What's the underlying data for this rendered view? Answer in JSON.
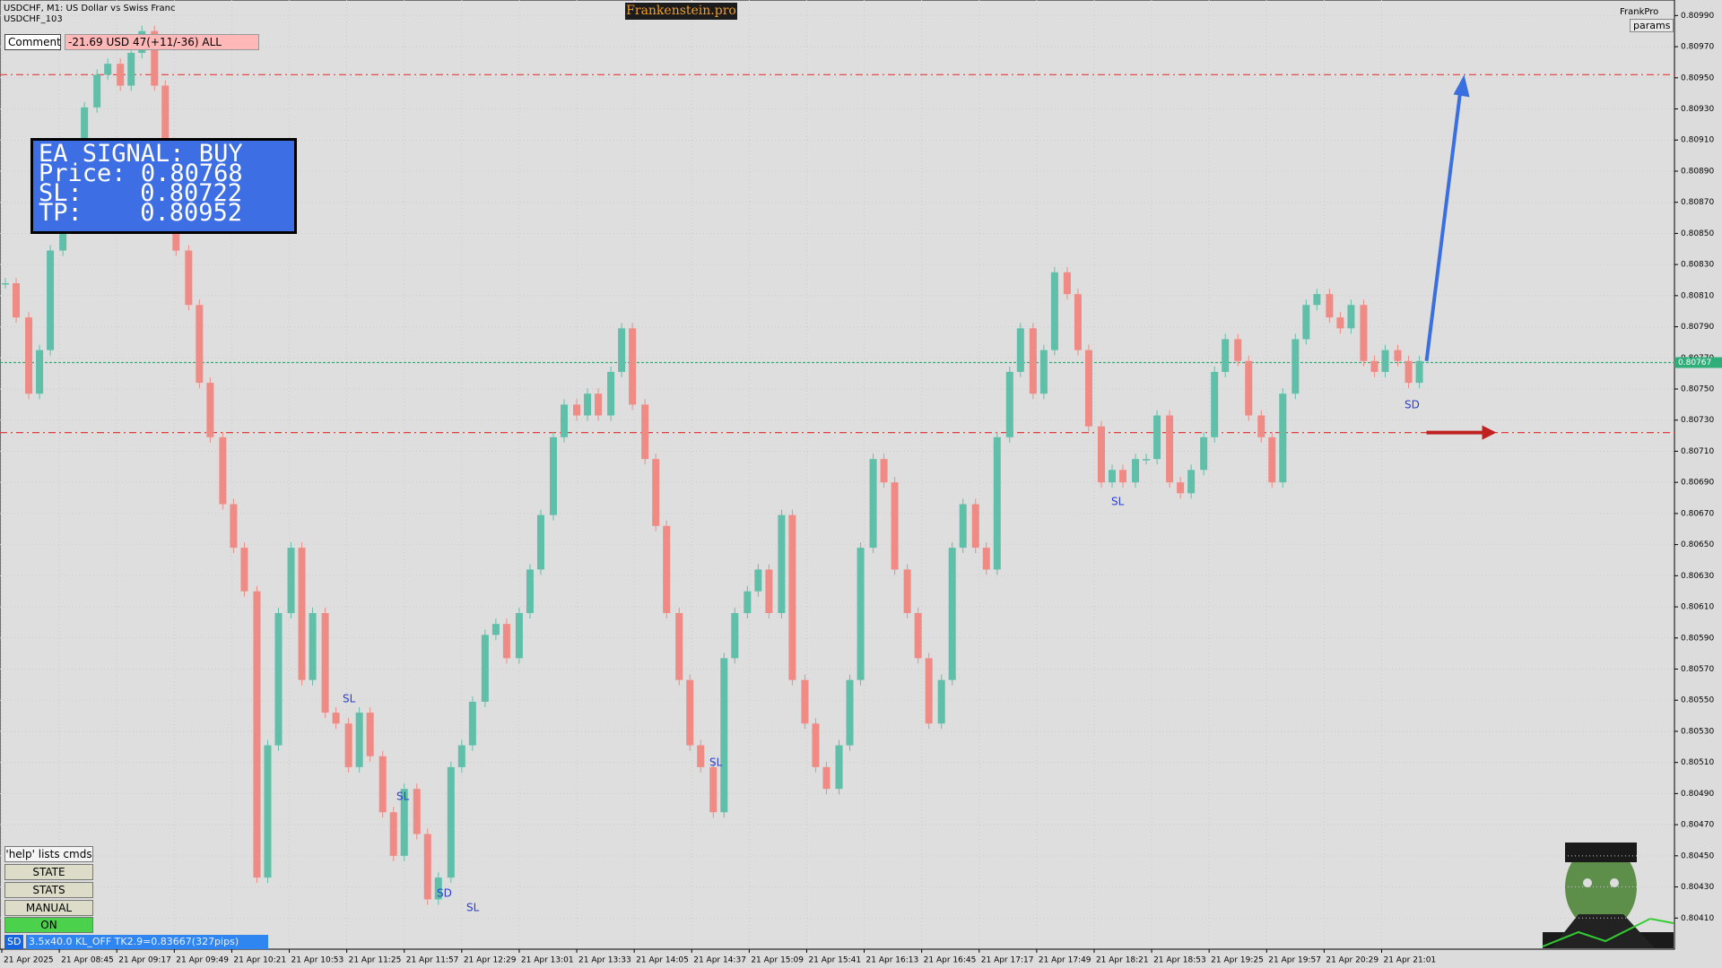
{
  "chart_data": {
    "type": "line",
    "title": "USDCHF, M1:  US Dollar vs Swiss Franc",
    "subtitle": "USDCHF_103",
    "x": [
      2,
      8,
      15,
      21,
      27,
      34,
      40,
      46,
      53,
      59,
      66,
      72,
      78,
      85,
      91,
      97,
      104,
      110,
      116,
      123,
      129,
      135,
      142,
      148,
      154,
      161,
      167,
      173,
      180,
      186,
      193,
      199,
      205,
      212,
      218,
      224,
      231,
      237,
      243,
      250,
      256,
      262,
      269,
      275,
      281,
      288,
      294,
      300,
      307,
      313,
      320,
      326,
      332,
      339,
      345,
      351,
      358,
      364,
      370,
      377,
      383,
      389,
      396,
      402,
      408,
      415,
      421,
      427,
      434,
      440,
      447,
      453,
      459,
      466,
      472,
      478,
      485,
      491,
      497,
      504,
      510,
      516,
      523,
      529,
      535,
      542,
      548,
      554,
      561,
      567,
      574,
      580,
      586,
      593,
      599,
      605,
      612,
      618,
      624,
      631,
      637,
      643,
      650,
      656,
      662,
      669,
      675,
      681,
      688,
      694,
      701,
      707,
      713,
      720,
      726,
      732,
      739,
      745,
      751,
      758,
      764,
      770,
      777,
      783,
      789
    ],
    "values": [
      0.80818,
      0.80796,
      0.80747,
      0.80775,
      0.80839,
      0.80853,
      0.80867,
      0.80931,
      0.80952,
      0.80959,
      0.80945,
      0.80966,
      0.8098,
      0.80945,
      0.8086,
      0.80839,
      0.80804,
      0.80754,
      0.80719,
      0.80676,
      0.80648,
      0.8062,
      0.80436,
      0.80521,
      0.80606,
      0.80648,
      0.80563,
      0.80606,
      0.80542,
      0.80535,
      0.80507,
      0.80542,
      0.80514,
      0.80478,
      0.8045,
      0.80493,
      0.80464,
      0.80422,
      0.80436,
      0.80507,
      0.80521,
      0.80549,
      0.80592,
      0.80599,
      0.80577,
      0.80606,
      0.80634,
      0.80669,
      0.80719,
      0.8074,
      0.80733,
      0.80747,
      0.80733,
      0.80761,
      0.80789,
      0.8074,
      0.80705,
      0.80662,
      0.80606,
      0.80563,
      0.80521,
      0.80507,
      0.80478,
      0.80577,
      0.80606,
      0.8062,
      0.80634,
      0.80606,
      0.80669,
      0.80563,
      0.80535,
      0.80507,
      0.80493,
      0.80521,
      0.80563,
      0.80648,
      0.80705,
      0.8069,
      0.80634,
      0.80606,
      0.80577,
      0.80535,
      0.80563,
      0.80648,
      0.80676,
      0.80648,
      0.80634,
      0.80719,
      0.80761,
      0.80789,
      0.80747,
      0.80775,
      0.80825,
      0.80811,
      0.80775,
      0.80726,
      0.8069,
      0.80698,
      0.8069,
      0.80705,
      0.80705,
      0.80733,
      0.8069,
      0.80683,
      0.80698,
      0.80719,
      0.80761,
      0.80782,
      0.80768,
      0.80733,
      0.80719,
      0.8069,
      0.80747,
      0.80782,
      0.80804,
      0.80811,
      0.80796,
      0.80789,
      0.80804,
      0.80768,
      0.80761,
      0.80775,
      0.80768,
      0.80754,
      0.80768
    ],
    "colors": {
      "up": "#5fbfa9",
      "down": "#f08a84"
    },
    "xlim": [
      -1,
      931
    ],
    "xticks": [
      {
        "value": 0,
        "label": "21 Apr 2025"
      },
      {
        "value": 32,
        "label": "21 Apr 08:45"
      },
      {
        "value": 64,
        "label": "21 Apr 09:17"
      },
      {
        "value": 96,
        "label": "21 Apr 09:49"
      },
      {
        "value": 128,
        "label": "21 Apr 10:21"
      },
      {
        "value": 160,
        "label": "21 Apr 10:53"
      },
      {
        "value": 192,
        "label": "21 Apr 11:25"
      },
      {
        "value": 224,
        "label": "21 Apr 11:57"
      },
      {
        "value": 256,
        "label": "21 Apr 12:29"
      },
      {
        "value": 288,
        "label": "21 Apr 13:01"
      },
      {
        "value": 320,
        "label": "21 Apr 13:33"
      },
      {
        "value": 352,
        "label": "21 Apr 14:05"
      },
      {
        "value": 384,
        "label": "21 Apr 14:37"
      },
      {
        "value": 416,
        "label": "21 Apr 15:09"
      },
      {
        "value": 448,
        "label": "21 Apr 15:41"
      },
      {
        "value": 480,
        "label": "21 Apr 16:13"
      },
      {
        "value": 512,
        "label": "21 Apr 16:45"
      },
      {
        "value": 544,
        "label": "21 Apr 17:17"
      },
      {
        "value": 576,
        "label": "21 Apr 17:49"
      },
      {
        "value": 608,
        "label": "21 Apr 18:21"
      },
      {
        "value": 640,
        "label": "21 Apr 18:53"
      },
      {
        "value": 672,
        "label": "21 Apr 19:25"
      },
      {
        "value": 704,
        "label": "21 Apr 19:57"
      },
      {
        "value": 736,
        "label": "21 Apr 20:29"
      },
      {
        "value": 768,
        "label": "21 Apr 21:01"
      }
    ],
    "ylim": [
      0.8039,
      0.81
    ],
    "yticks": [
      {
        "value": 0.8041,
        "label": "0.80410"
      },
      {
        "value": 0.8043,
        "label": "0.80430"
      },
      {
        "value": 0.8045,
        "label": "0.80450"
      },
      {
        "value": 0.8047,
        "label": "0.80470"
      },
      {
        "value": 0.8049,
        "label": "0.80490"
      },
      {
        "value": 0.8051,
        "label": "0.80510"
      },
      {
        "value": 0.8053,
        "label": "0.80530"
      },
      {
        "value": 0.8055,
        "label": "0.80550"
      },
      {
        "value": 0.8057,
        "label": "0.80570"
      },
      {
        "value": 0.8059,
        "label": "0.80590"
      },
      {
        "value": 0.8061,
        "label": "0.80610"
      },
      {
        "value": 0.8063,
        "label": "0.80630"
      },
      {
        "value": 0.8065,
        "label": "0.80650"
      },
      {
        "value": 0.8067,
        "label": "0.80670"
      },
      {
        "value": 0.8069,
        "label": "0.80690"
      },
      {
        "value": 0.8071,
        "label": "0.80710"
      },
      {
        "value": 0.8073,
        "label": "0.80730"
      },
      {
        "value": 0.8075,
        "label": "0.80750"
      },
      {
        "value": 0.8077,
        "label": "0.80770"
      },
      {
        "value": 0.8079,
        "label": "0.80790"
      },
      {
        "value": 0.8081,
        "label": "0.80810"
      },
      {
        "value": 0.8083,
        "label": "0.80830"
      },
      {
        "value": 0.8085,
        "label": "0.80850"
      },
      {
        "value": 0.8087,
        "label": "0.80870"
      },
      {
        "value": 0.8089,
        "label": "0.80890"
      },
      {
        "value": 0.8091,
        "label": "0.80910"
      },
      {
        "value": 0.8093,
        "label": "0.80930"
      },
      {
        "value": 0.8095,
        "label": "0.80950"
      },
      {
        "value": 0.8097,
        "label": "0.80970"
      },
      {
        "value": 0.8099,
        "label": "0.80990"
      }
    ],
    "grid": true,
    "current_price": 0.80767,
    "signal": {
      "title": "EA SIGNAL: BUY",
      "price_label": "Price:",
      "price": 0.80768,
      "sl_label": "SL:",
      "sl": 0.80722,
      "tp_label": "TP:",
      "tp": 0.80952
    },
    "annotations": [
      "SL",
      "SL",
      "SD",
      "SL",
      "SL",
      "SL",
      "SD"
    ]
  },
  "header": {
    "brand": "Frankenstein.pro",
    "user": "FrankPro",
    "params": "params"
  },
  "comment": {
    "label": "Comment",
    "text": "-21.69 USD 47(+11/-36) ALL"
  },
  "buttons": [
    "'help' lists cmds",
    "STATE",
    "STATS",
    "MANUAL",
    "ON"
  ],
  "status": {
    "badge": "SD",
    "text": "3.5x40.0 KL_OFF TK2.9=0.83667(327pips)"
  }
}
